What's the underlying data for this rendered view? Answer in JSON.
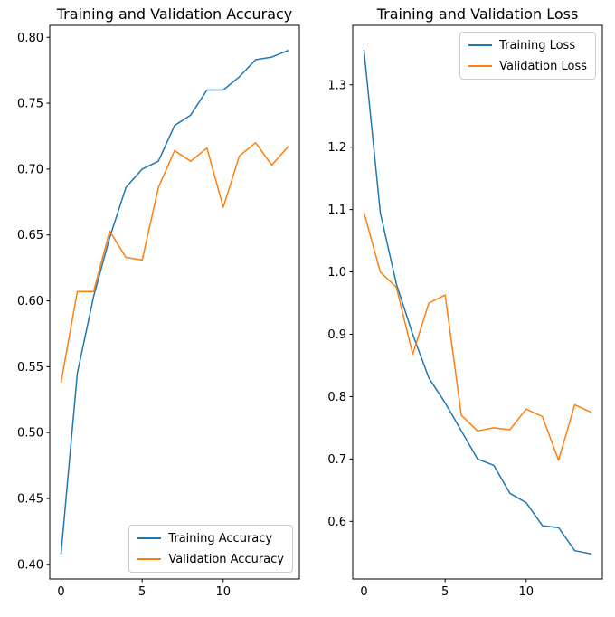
{
  "colors": {
    "training": "#1f77b4",
    "validation": "#ff7f0e"
  },
  "chart_data": [
    {
      "type": "line",
      "title": "Training and Validation Accuracy",
      "xlabel": "",
      "ylabel": "",
      "x": [
        0,
        1,
        2,
        3,
        4,
        5,
        6,
        7,
        8,
        9,
        10,
        11,
        12,
        13,
        14
      ],
      "xlim": [
        -0.7,
        14.7
      ],
      "ylim": [
        0.3889,
        0.8091
      ],
      "xticks": [
        0,
        5,
        10
      ],
      "yticks": [
        0.4,
        0.45,
        0.5,
        0.55,
        0.6,
        0.65,
        0.7,
        0.75,
        0.8
      ],
      "ytick_labels": [
        "0.40",
        "0.45",
        "0.50",
        "0.55",
        "0.60",
        "0.65",
        "0.70",
        "0.75",
        "0.80"
      ],
      "grid": false,
      "legend_position": "lower right",
      "series": [
        {
          "name": "Training Accuracy",
          "color_key": "training",
          "values": [
            0.408,
            0.545,
            0.603,
            0.648,
            0.686,
            0.7,
            0.706,
            0.733,
            0.741,
            0.76,
            0.76,
            0.77,
            0.783,
            0.785,
            0.79
          ]
        },
        {
          "name": "Validation Accuracy",
          "color_key": "validation",
          "values": [
            0.538,
            0.607,
            0.607,
            0.653,
            0.633,
            0.631,
            0.686,
            0.714,
            0.706,
            0.716,
            0.671,
            0.71,
            0.72,
            0.703,
            0.717
          ]
        }
      ]
    },
    {
      "type": "line",
      "title": "Training and Validation Loss",
      "xlabel": "",
      "ylabel": "",
      "x": [
        0,
        1,
        2,
        3,
        4,
        5,
        6,
        7,
        8,
        9,
        10,
        11,
        12,
        13,
        14
      ],
      "xlim": [
        -0.7,
        14.7
      ],
      "ylim": [
        0.5076,
        1.3954
      ],
      "xticks": [
        0,
        5,
        10
      ],
      "yticks": [
        0.6,
        0.7,
        0.8,
        0.9,
        1.0,
        1.1,
        1.2,
        1.3
      ],
      "ytick_labels": [
        "0.6",
        "0.7",
        "0.8",
        "0.9",
        "1.0",
        "1.1",
        "1.2",
        "1.3"
      ],
      "grid": false,
      "legend_position": "upper right",
      "series": [
        {
          "name": "Training Loss",
          "color_key": "training",
          "values": [
            1.355,
            1.095,
            0.98,
            0.9,
            0.83,
            0.79,
            0.745,
            0.7,
            0.69,
            0.645,
            0.63,
            0.593,
            0.59,
            0.553,
            0.548
          ]
        },
        {
          "name": "Validation Loss",
          "color_key": "validation",
          "values": [
            1.095,
            1.0,
            0.975,
            0.868,
            0.95,
            0.963,
            0.77,
            0.745,
            0.75,
            0.747,
            0.78,
            0.768,
            0.698,
            0.787,
            0.775
          ]
        }
      ]
    }
  ]
}
